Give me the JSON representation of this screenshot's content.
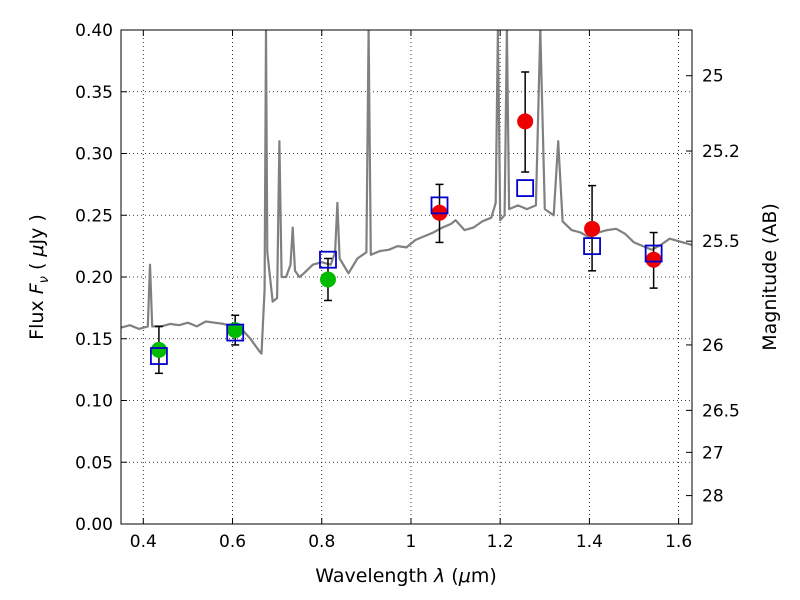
{
  "chart_data": {
    "type": "scatter",
    "title": "",
    "xlabel": "Wavelength  λ (μm)",
    "ylabel": "Flux  F_ν  ( μJy )",
    "y2label": "Magnitude (AB)",
    "xlim": [
      0.35,
      1.63
    ],
    "ylim": [
      0,
      0.4
    ],
    "grid": true,
    "x_ticks": [
      {
        "value": 0.4,
        "label": "0.4"
      },
      {
        "value": 0.6,
        "label": "0.6"
      },
      {
        "value": 0.8,
        "label": "0.8"
      },
      {
        "value": 1.0,
        "label": "1"
      },
      {
        "value": 1.2,
        "label": "1.2"
      },
      {
        "value": 1.4,
        "label": "1.4"
      },
      {
        "value": 1.6,
        "label": "1.6"
      }
    ],
    "y_ticks": [
      {
        "value": 0.0,
        "label": "0.00"
      },
      {
        "value": 0.05,
        "label": "0.05"
      },
      {
        "value": 0.1,
        "label": "0.10"
      },
      {
        "value": 0.15,
        "label": "0.15"
      },
      {
        "value": 0.2,
        "label": "0.20"
      },
      {
        "value": 0.25,
        "label": "0.25"
      },
      {
        "value": 0.3,
        "label": "0.30"
      },
      {
        "value": 0.35,
        "label": "0.35"
      },
      {
        "value": 0.4,
        "label": "0.40"
      }
    ],
    "y2_ticks": [
      {
        "flux": 0.363,
        "label": "25"
      },
      {
        "flux": 0.302,
        "label": "25.2"
      },
      {
        "flux": 0.229,
        "label": "25.5"
      },
      {
        "flux": 0.145,
        "label": "26"
      },
      {
        "flux": 0.092,
        "label": "26.5"
      },
      {
        "flux": 0.058,
        "label": "27"
      },
      {
        "flux": 0.023,
        "label": "28"
      }
    ],
    "colors": {
      "spectrum": "#808080",
      "green_points": "#00bb00",
      "red_points": "#ee0000",
      "model_squares": "#0000cc",
      "errorbars": "#000000",
      "grid": "#000000"
    },
    "series": [
      {
        "type": "line",
        "values": [
          [
            0.35,
            0.159
          ],
          [
            0.37,
            0.161
          ],
          [
            0.39,
            0.158
          ],
          [
            0.41,
            0.16
          ],
          [
            0.415,
            0.21
          ],
          [
            0.42,
            0.16
          ],
          [
            0.44,
            0.16
          ],
          [
            0.46,
            0.162
          ],
          [
            0.48,
            0.161
          ],
          [
            0.5,
            0.163
          ],
          [
            0.52,
            0.16
          ],
          [
            0.54,
            0.164
          ],
          [
            0.56,
            0.163
          ],
          [
            0.58,
            0.162
          ],
          [
            0.6,
            0.16
          ],
          [
            0.62,
            0.158
          ],
          [
            0.64,
            0.15
          ],
          [
            0.66,
            0.14
          ],
          [
            0.665,
            0.138
          ],
          [
            0.672,
            0.19
          ],
          [
            0.675,
            0.4
          ],
          [
            0.678,
            0.22
          ],
          [
            0.69,
            0.18
          ],
          [
            0.7,
            0.183
          ],
          [
            0.705,
            0.31
          ],
          [
            0.71,
            0.2
          ],
          [
            0.72,
            0.2
          ],
          [
            0.73,
            0.21
          ],
          [
            0.735,
            0.24
          ],
          [
            0.74,
            0.205
          ],
          [
            0.75,
            0.2
          ],
          [
            0.76,
            0.203
          ],
          [
            0.78,
            0.21
          ],
          [
            0.8,
            0.212
          ],
          [
            0.82,
            0.21
          ],
          [
            0.83,
            0.22
          ],
          [
            0.835,
            0.26
          ],
          [
            0.84,
            0.215
          ],
          [
            0.86,
            0.203
          ],
          [
            0.88,
            0.215
          ],
          [
            0.9,
            0.22
          ],
          [
            0.905,
            0.4
          ],
          [
            0.91,
            0.218
          ],
          [
            0.93,
            0.221
          ],
          [
            0.95,
            0.222
          ],
          [
            0.97,
            0.225
          ],
          [
            0.99,
            0.224
          ],
          [
            1.01,
            0.23
          ],
          [
            1.03,
            0.233
          ],
          [
            1.05,
            0.236
          ],
          [
            1.07,
            0.24
          ],
          [
            1.09,
            0.243
          ],
          [
            1.1,
            0.246
          ],
          [
            1.12,
            0.238
          ],
          [
            1.14,
            0.24
          ],
          [
            1.16,
            0.245
          ],
          [
            1.18,
            0.248
          ],
          [
            1.19,
            0.26
          ],
          [
            1.195,
            0.4
          ],
          [
            1.2,
            0.246
          ],
          [
            1.21,
            0.25
          ],
          [
            1.215,
            0.4
          ],
          [
            1.22,
            0.255
          ],
          [
            1.24,
            0.258
          ],
          [
            1.26,
            0.255
          ],
          [
            1.28,
            0.258
          ],
          [
            1.29,
            0.4
          ],
          [
            1.3,
            0.255
          ],
          [
            1.32,
            0.25
          ],
          [
            1.33,
            0.31
          ],
          [
            1.34,
            0.245
          ],
          [
            1.36,
            0.238
          ],
          [
            1.38,
            0.236
          ],
          [
            1.4,
            0.232
          ],
          [
            1.42,
            0.236
          ],
          [
            1.44,
            0.238
          ],
          [
            1.46,
            0.239
          ],
          [
            1.48,
            0.235
          ],
          [
            1.5,
            0.228
          ],
          [
            1.52,
            0.225
          ],
          [
            1.54,
            0.222
          ],
          [
            1.56,
            0.226
          ],
          [
            1.58,
            0.231
          ],
          [
            1.6,
            0.229
          ],
          [
            1.63,
            0.226
          ]
        ]
      },
      {
        "type": "errorbar-points",
        "color": "green",
        "values": [
          {
            "x": 0.435,
            "y": 0.141,
            "yerr_low": 0.019,
            "yerr_high": 0.019
          },
          {
            "x": 0.606,
            "y": 0.157,
            "yerr_low": 0.012,
            "yerr_high": 0.012
          },
          {
            "x": 0.814,
            "y": 0.198,
            "yerr_low": 0.017,
            "yerr_high": 0.017
          }
        ]
      },
      {
        "type": "errorbar-points",
        "color": "red",
        "values": [
          {
            "x": 1.064,
            "y": 0.252,
            "yerr_low": 0.024,
            "yerr_high": 0.023
          },
          {
            "x": 1.256,
            "y": 0.326,
            "yerr_low": 0.041,
            "yerr_high": 0.04
          },
          {
            "x": 1.406,
            "y": 0.239,
            "yerr_low": 0.034,
            "yerr_high": 0.035
          },
          {
            "x": 1.544,
            "y": 0.214,
            "yerr_low": 0.023,
            "yerr_high": 0.022
          }
        ]
      },
      {
        "type": "squares",
        "values": [
          {
            "x": 0.435,
            "y": 0.136
          },
          {
            "x": 0.606,
            "y": 0.155
          },
          {
            "x": 0.814,
            "y": 0.214
          },
          {
            "x": 1.064,
            "y": 0.258
          },
          {
            "x": 1.256,
            "y": 0.272
          },
          {
            "x": 1.406,
            "y": 0.225
          },
          {
            "x": 1.544,
            "y": 0.219
          }
        ]
      }
    ]
  }
}
